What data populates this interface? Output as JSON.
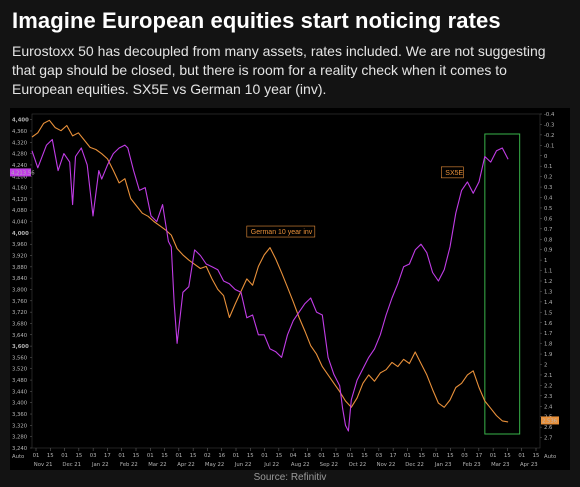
{
  "page": {
    "title": "Imagine European equities start noticing rates",
    "subtitle": "Eurostoxx 50 has decoupled from many assets, rates included. We are not suggesting that gap should be closed, but there is room for a reality check when it comes to European equities. SX5E vs German 10 year (inv).",
    "source": "Source: Refinitiv"
  },
  "colors": {
    "sx5e": "#c13ce6",
    "bund": "#e8903a",
    "highlight": "#39b34a",
    "background": "#000000"
  },
  "chart_data": {
    "type": "line",
    "xlabel": "",
    "ylabel": "",
    "x_ticks": [
      "Nov 21",
      "Dec 21",
      "Jan 22",
      "Feb 22",
      "Mar 22",
      "Apr 22",
      "May 22",
      "Jun 22",
      "Jul 22",
      "Aug 22",
      "Sep 22",
      "Oct 22",
      "Nov 22",
      "Dec 22",
      "Jan 23",
      "Feb 23",
      "Mar 23",
      "Apr 23"
    ],
    "x_day_labels": [
      "01",
      "15",
      "01",
      "15",
      "03",
      "17",
      "01",
      "15",
      "01",
      "15",
      "01",
      "15",
      "02",
      "16",
      "01",
      "15",
      "01",
      "15",
      "04",
      "18",
      "01",
      "15",
      "01",
      "15",
      "03",
      "17",
      "01",
      "15",
      "01",
      "15",
      "03",
      "17",
      "01",
      "15",
      "01",
      "15"
    ],
    "left_axis": {
      "ylim": [
        3240,
        4420
      ],
      "ticks": [
        4400,
        4360,
        4320,
        4280,
        4240,
        4200,
        4160,
        4120,
        4080,
        4040,
        4000,
        3960,
        3920,
        3880,
        3840,
        3800,
        3760,
        3720,
        3680,
        3640,
        3600,
        3560,
        3520,
        3480,
        3440,
        3400,
        3360,
        3320,
        3280,
        3240
      ],
      "bold_ticks": [
        4400,
        4000,
        3600
      ],
      "current_value_label": "4,213.56",
      "scale_label": "Auto"
    },
    "right_axis": {
      "inverted": true,
      "ylim": [
        -0.4,
        2.8
      ],
      "ticks": [
        -0.4,
        -0.3,
        -0.2,
        -0.1,
        0,
        0.1,
        0.2,
        0.3,
        0.4,
        0.5,
        0.6,
        0.7,
        0.8,
        0.9,
        1,
        1.1,
        1.2,
        1.3,
        1.4,
        1.5,
        1.6,
        1.7,
        1.8,
        1.9,
        2,
        2.1,
        2.2,
        2.3,
        2.4,
        2.5,
        2.6,
        2.7
      ],
      "current_value_label": "2.536",
      "scale_label": "Auto"
    },
    "series": [
      {
        "name": "SX5E",
        "axis": "left",
        "values": [
          [
            0,
            4290
          ],
          [
            2,
            4230
          ],
          [
            5,
            4310
          ],
          [
            7,
            4330
          ],
          [
            9,
            4220
          ],
          [
            11,
            4280
          ],
          [
            13,
            4250
          ],
          [
            14,
            4100
          ],
          [
            15,
            4270
          ],
          [
            17,
            4300
          ],
          [
            19,
            4240
          ],
          [
            21,
            4060
          ],
          [
            23,
            4220
          ],
          [
            24,
            4190
          ],
          [
            26,
            4240
          ],
          [
            28,
            4280
          ],
          [
            30,
            4300
          ],
          [
            32,
            4310
          ],
          [
            33,
            4300
          ],
          [
            35,
            4220
          ],
          [
            37,
            4150
          ],
          [
            39,
            4160
          ],
          [
            41,
            4060
          ],
          [
            43,
            4040
          ],
          [
            45,
            4100
          ],
          [
            47,
            3970
          ],
          [
            48,
            3950
          ],
          [
            49,
            3750
          ],
          [
            50,
            3610
          ],
          [
            52,
            3790
          ],
          [
            54,
            3810
          ],
          [
            56,
            3940
          ],
          [
            58,
            3920
          ],
          [
            60,
            3890
          ],
          [
            62,
            3880
          ],
          [
            64,
            3870
          ],
          [
            66,
            3830
          ],
          [
            68,
            3820
          ],
          [
            70,
            3800
          ],
          [
            72,
            3790
          ],
          [
            74,
            3700
          ],
          [
            76,
            3710
          ],
          [
            78,
            3640
          ],
          [
            80,
            3640
          ],
          [
            82,
            3590
          ],
          [
            84,
            3580
          ],
          [
            86,
            3560
          ],
          [
            88,
            3640
          ],
          [
            90,
            3690
          ],
          [
            92,
            3720
          ],
          [
            94,
            3750
          ],
          [
            96,
            3770
          ],
          [
            98,
            3720
          ],
          [
            100,
            3710
          ],
          [
            102,
            3560
          ],
          [
            104,
            3500
          ],
          [
            106,
            3460
          ],
          [
            107,
            3380
          ],
          [
            108,
            3320
          ],
          [
            109,
            3300
          ],
          [
            110,
            3410
          ],
          [
            112,
            3480
          ],
          [
            114,
            3520
          ],
          [
            116,
            3560
          ],
          [
            118,
            3590
          ],
          [
            120,
            3640
          ],
          [
            122,
            3710
          ],
          [
            124,
            3770
          ],
          [
            126,
            3820
          ],
          [
            128,
            3880
          ],
          [
            130,
            3890
          ],
          [
            132,
            3940
          ],
          [
            134,
            3960
          ],
          [
            136,
            3930
          ],
          [
            138,
            3860
          ],
          [
            140,
            3830
          ],
          [
            142,
            3870
          ],
          [
            144,
            3950
          ],
          [
            146,
            4070
          ],
          [
            148,
            4150
          ],
          [
            150,
            4180
          ],
          [
            152,
            4140
          ],
          [
            154,
            4180
          ],
          [
            156,
            4270
          ],
          [
            158,
            4250
          ],
          [
            160,
            4290
          ],
          [
            162,
            4300
          ],
          [
            164,
            4260
          ]
        ]
      },
      {
        "name": "German 10 year inv",
        "axis": "right",
        "values": [
          [
            0,
            -0.18
          ],
          [
            2,
            -0.22
          ],
          [
            4,
            -0.31
          ],
          [
            6,
            -0.34
          ],
          [
            8,
            -0.27
          ],
          [
            10,
            -0.24
          ],
          [
            12,
            -0.29
          ],
          [
            14,
            -0.19
          ],
          [
            16,
            -0.22
          ],
          [
            18,
            -0.15
          ],
          [
            20,
            -0.08
          ],
          [
            22,
            -0.06
          ],
          [
            24,
            -0.02
          ],
          [
            26,
            0.03
          ],
          [
            28,
            0.14
          ],
          [
            30,
            0.26
          ],
          [
            32,
            0.22
          ],
          [
            34,
            0.41
          ],
          [
            36,
            0.48
          ],
          [
            38,
            0.55
          ],
          [
            40,
            0.58
          ],
          [
            42,
            0.63
          ],
          [
            44,
            0.67
          ],
          [
            46,
            0.71
          ],
          [
            48,
            0.76
          ],
          [
            50,
            0.89
          ],
          [
            52,
            0.95
          ],
          [
            54,
            1.0
          ],
          [
            56,
            1.04
          ],
          [
            58,
            1.08
          ],
          [
            60,
            1.06
          ],
          [
            62,
            1.18
          ],
          [
            64,
            1.28
          ],
          [
            66,
            1.34
          ],
          [
            68,
            1.55
          ],
          [
            70,
            1.42
          ],
          [
            72,
            1.3
          ],
          [
            74,
            1.18
          ],
          [
            76,
            1.24
          ],
          [
            78,
            1.06
          ],
          [
            80,
            0.95
          ],
          [
            82,
            0.88
          ],
          [
            84,
            0.99
          ],
          [
            86,
            1.12
          ],
          [
            88,
            1.26
          ],
          [
            90,
            1.4
          ],
          [
            92,
            1.55
          ],
          [
            94,
            1.68
          ],
          [
            96,
            1.82
          ],
          [
            98,
            1.9
          ],
          [
            100,
            2.02
          ],
          [
            102,
            2.1
          ],
          [
            104,
            2.18
          ],
          [
            106,
            2.26
          ],
          [
            108,
            2.35
          ],
          [
            110,
            2.41
          ],
          [
            112,
            2.32
          ],
          [
            114,
            2.18
          ],
          [
            116,
            2.1
          ],
          [
            118,
            2.16
          ],
          [
            120,
            2.08
          ],
          [
            122,
            2.05
          ],
          [
            124,
            1.98
          ],
          [
            126,
            2.02
          ],
          [
            128,
            1.95
          ],
          [
            130,
            1.99
          ],
          [
            132,
            1.88
          ],
          [
            134,
            1.99
          ],
          [
            136,
            2.1
          ],
          [
            138,
            2.24
          ],
          [
            140,
            2.37
          ],
          [
            142,
            2.41
          ],
          [
            144,
            2.34
          ],
          [
            146,
            2.22
          ],
          [
            148,
            2.18
          ],
          [
            150,
            2.1
          ],
          [
            152,
            2.06
          ],
          [
            154,
            2.22
          ],
          [
            156,
            2.35
          ],
          [
            158,
            2.42
          ],
          [
            160,
            2.49
          ],
          [
            162,
            2.54
          ],
          [
            164,
            2.55
          ]
        ]
      }
    ],
    "annotations": [
      {
        "id": "sx5e",
        "text": "SX5E"
      },
      {
        "id": "bund",
        "text": "German 10 year inv"
      }
    ]
  }
}
